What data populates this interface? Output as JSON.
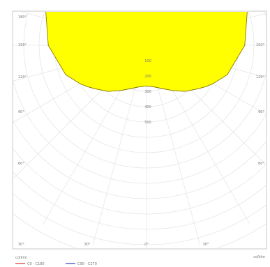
{
  "chart_data": {
    "type": "polar",
    "title": "",
    "units": "cd/klm",
    "radial_ticks": [
      {
        "value": 100,
        "label": "100"
      },
      {
        "value": 200,
        "label": "200"
      },
      {
        "value": 300,
        "label": "300"
      },
      {
        "value": 400,
        "label": "400"
      },
      {
        "value": 500,
        "label": "500"
      }
    ],
    "angle_labels": [
      {
        "angle": -180,
        "label": "180°"
      },
      {
        "angle": -150,
        "label": "150°"
      },
      {
        "angle": -120,
        "label": "120°"
      },
      {
        "angle": -90,
        "label": "90°"
      },
      {
        "angle": -60,
        "label": "60°"
      },
      {
        "angle": -30,
        "label": "30°"
      },
      {
        "angle": 0,
        "label": "0°"
      },
      {
        "angle": 30,
        "label": "30°"
      },
      {
        "angle": 60,
        "label": "60°"
      },
      {
        "angle": 90,
        "label": "90°"
      },
      {
        "angle": 120,
        "label": "120°"
      },
      {
        "angle": 150,
        "label": "150°"
      },
      {
        "angle": 180,
        "label": "180°"
      }
    ],
    "series": [
      {
        "name": "C0 - C180",
        "color": "#e03030"
      },
      {
        "name": "C90 - C270",
        "color": "#3040c0"
      }
    ],
    "fill_color": "#ffff00",
    "stroke_color": "#8a7a00",
    "center_lobe": [
      {
        "angle": 0,
        "r": 265
      },
      {
        "angle": 10,
        "r": 275
      },
      {
        "angle": 20,
        "r": 300
      },
      {
        "angle": 30,
        "r": 340
      },
      {
        "angle": 40,
        "r": 392
      },
      {
        "angle": 50,
        "r": 440
      },
      {
        "angle": 55,
        "r": 470
      },
      {
        "angle": 60,
        "r": 500
      }
    ],
    "side_lobe": [
      {
        "angle": 115,
        "r": 310
      },
      {
        "angle": 125,
        "r": 330
      },
      {
        "angle": 135,
        "r": 395
      },
      {
        "angle": 140,
        "r": 455
      },
      {
        "angle": 145,
        "r": 600
      },
      {
        "angle": 150,
        "r": 720
      },
      {
        "angle": 155,
        "r": 755
      },
      {
        "angle": 160,
        "r": 695
      },
      {
        "angle": 165,
        "r": 560
      },
      {
        "angle": 170,
        "r": 430
      },
      {
        "angle": 175,
        "r": 340
      },
      {
        "angle": 180,
        "r": 280
      }
    ]
  }
}
